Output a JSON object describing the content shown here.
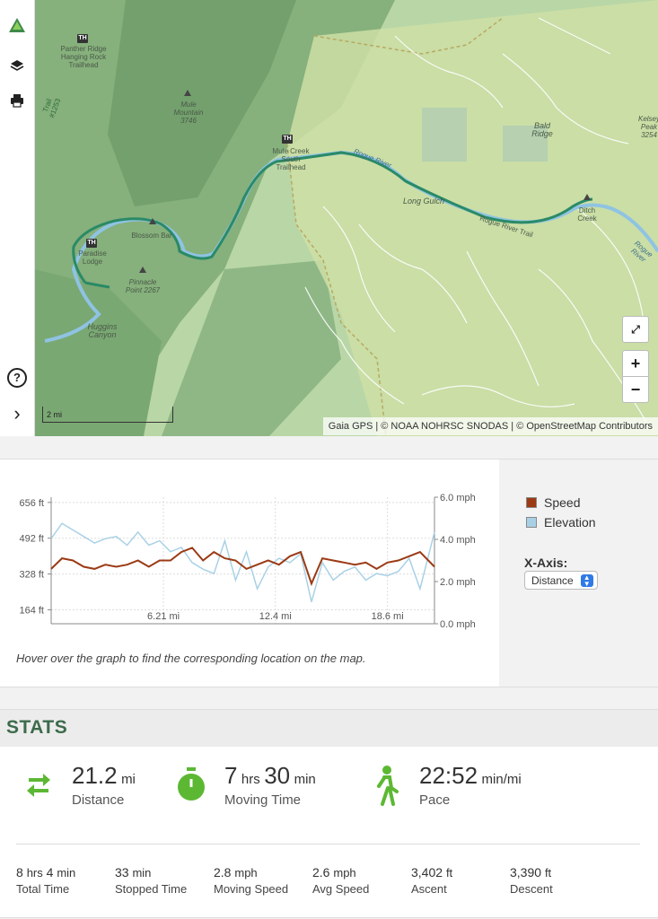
{
  "map": {
    "labels": {
      "panther_ridge": "Panther Ridge Hanging Rock Trailhead",
      "trail_1253": "Trail #1253",
      "mule_mountain": "Mule Mountain 3746",
      "mule_creek": "Mule Creek South Trailhead",
      "rogue_river": "Rogue River",
      "bald_ridge": "Bald Ridge",
      "kelsey_peak": "Kelsey Peak 3254",
      "blossom_bar": "Blossom Bar",
      "paradise_lodge": "Paradise Lodge",
      "pinnacle_point": "Pinnacle Point 2267",
      "long_gulch": "Long Gulch",
      "rogue_river_trail": "Rogue River Trail",
      "ditch_creek": "Ditch Creek",
      "rogue_river_2": "Rogue River",
      "huggins_canyon": "Huggins Canyon"
    },
    "th_badge": "TH",
    "scale": "2 mi",
    "attribution": "Gaia GPS | © NOAA NOHRSC SNODAS | © OpenStreetMap Contributors",
    "zoom_in": "+",
    "zoom_out": "−",
    "colors": {
      "route": "#2a8a66",
      "river": "#8fc3e3",
      "terrain": "#a9cc9a",
      "forest": "#7fb07a"
    }
  },
  "toolbar": {
    "icons": [
      "gaia-logo-icon",
      "layers-icon",
      "print-icon",
      "help-icon",
      "chevron-right-icon"
    ],
    "help_glyph": "?",
    "expand_glyph": "›"
  },
  "chart": {
    "legend": {
      "speed": "Speed",
      "elevation": "Elevation"
    },
    "speed_color": "#9b3a14",
    "elevation_color": "#a9d1e6",
    "xaxis_label": "X-Axis:",
    "xaxis_value": "Distance",
    "hint": "Hover over the graph to find the corresponding location on the map."
  },
  "chart_data": {
    "type": "line",
    "x_ticks": [
      "6.21 mi",
      "12.4 mi",
      "18.6 mi"
    ],
    "y_left_ticks": [
      "656 ft",
      "492 ft",
      "328 ft",
      "164 ft"
    ],
    "y_right_ticks": [
      "6.0 mph",
      "4.0 mph",
      "2.0 mph",
      "0.0 mph"
    ],
    "ylim_left": [
      100,
      680
    ],
    "ylim_right": [
      0,
      6
    ],
    "xlim": [
      0,
      21.2
    ],
    "series": [
      {
        "name": "Elevation",
        "axis": "left",
        "x": [
          0,
          0.6,
          1.2,
          1.8,
          2.4,
          3.0,
          3.6,
          4.2,
          4.8,
          5.4,
          6.0,
          6.6,
          7.2,
          7.8,
          8.4,
          9.0,
          9.6,
          10.2,
          10.8,
          11.4,
          12.0,
          12.6,
          13.2,
          13.8,
          14.4,
          15.0,
          15.6,
          16.2,
          16.8,
          17.4,
          18.0,
          18.6,
          19.2,
          19.8,
          20.4,
          21.2
        ],
        "y": [
          490,
          560,
          530,
          500,
          470,
          490,
          500,
          460,
          520,
          460,
          480,
          430,
          450,
          380,
          350,
          330,
          480,
          300,
          430,
          260,
          360,
          400,
          380,
          420,
          200,
          380,
          300,
          340,
          360,
          300,
          330,
          320,
          340,
          400,
          260,
          520
        ]
      },
      {
        "name": "Speed",
        "axis": "right",
        "x": [
          0,
          0.6,
          1.2,
          1.8,
          2.4,
          3.0,
          3.6,
          4.2,
          4.8,
          5.4,
          6.0,
          6.6,
          7.2,
          7.8,
          8.4,
          9.0,
          9.6,
          10.2,
          10.8,
          11.4,
          12.0,
          12.6,
          13.2,
          13.8,
          14.4,
          15.0,
          15.6,
          16.2,
          16.8,
          17.4,
          18.0,
          18.6,
          19.2,
          19.8,
          20.4,
          21.2
        ],
        "y": [
          2.6,
          3.1,
          3.0,
          2.7,
          2.6,
          2.8,
          2.7,
          2.8,
          3.0,
          2.7,
          3.0,
          3.0,
          3.4,
          3.6,
          3.0,
          3.4,
          3.1,
          3.0,
          2.6,
          2.8,
          3.0,
          2.8,
          3.2,
          3.4,
          1.9,
          3.1,
          3.0,
          2.9,
          2.8,
          2.9,
          2.6,
          2.9,
          3.0,
          3.2,
          3.4,
          2.7
        ]
      }
    ]
  },
  "stats": {
    "heading": "STATS",
    "distance": {
      "value": "21.2",
      "unit": "mi",
      "label": "Distance"
    },
    "moving_time": {
      "hrs": "7",
      "hrs_unit": "hrs",
      "min": "30",
      "min_unit": "min",
      "label": "Moving Time"
    },
    "pace": {
      "value": "22:52",
      "unit": "min/mi",
      "label": "Pace"
    },
    "total_time": {
      "h": "8",
      "h_unit": "hrs",
      "m": "4",
      "m_unit": "min",
      "label": "Total Time"
    },
    "stopped_time": {
      "value": "33",
      "unit": "min",
      "label": "Stopped Time"
    },
    "moving_speed": {
      "value": "2.8",
      "unit": "mph",
      "label": "Moving Speed"
    },
    "avg_speed": {
      "value": "2.6",
      "unit": "mph",
      "label": "Avg Speed"
    },
    "ascent": {
      "value": "3,402",
      "unit": "ft",
      "label": "Ascent"
    },
    "descent": {
      "value": "3,390",
      "unit": "ft",
      "label": "Descent"
    },
    "icon_color": "#5cb833"
  }
}
